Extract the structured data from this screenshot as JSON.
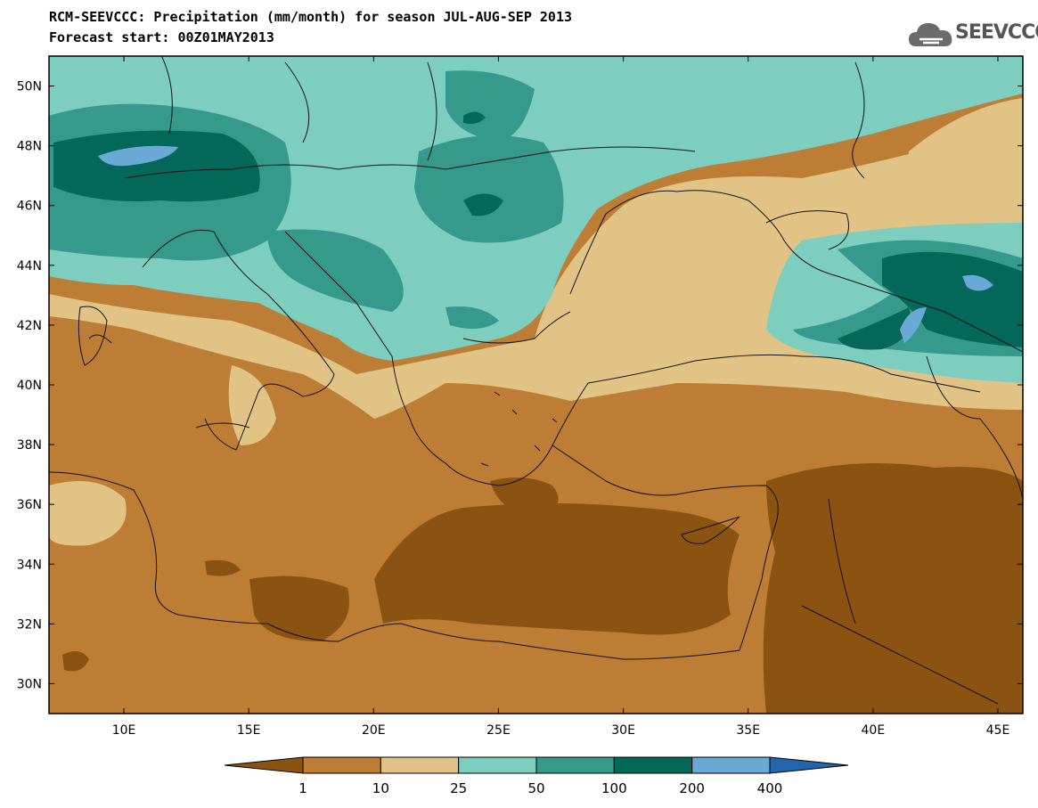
{
  "header": {
    "title_line1": "RCM-SEEVCCC: Precipitation (mm/month) for season JUL-AUG-SEP 2013",
    "title_line2": "Forecast start: 00Z01MAY2013",
    "logo_text": "SEEVCCC"
  },
  "map": {
    "lon_range": [
      7,
      46
    ],
    "lat_range": [
      29,
      51
    ],
    "lat_ticks": [
      "50N",
      "48N",
      "46N",
      "44N",
      "42N",
      "40N",
      "38N",
      "36N",
      "34N",
      "32N",
      "30N"
    ],
    "lat_values": [
      50,
      48,
      46,
      44,
      42,
      40,
      38,
      36,
      34,
      32,
      30
    ],
    "lon_ticks": [
      "10E",
      "15E",
      "20E",
      "25E",
      "30E",
      "35E",
      "40E",
      "45E"
    ],
    "lon_values": [
      10,
      15,
      20,
      25,
      30,
      35,
      40,
      45
    ]
  },
  "colorbar": {
    "labels": [
      "1",
      "10",
      "25",
      "50",
      "100",
      "200",
      "400"
    ],
    "colors": [
      "#8b5312",
      "#bd7d35",
      "#e0c385",
      "#7ecec0",
      "#359a8c",
      "#036759",
      "#6aa9d6",
      "#2166ac"
    ]
  }
}
